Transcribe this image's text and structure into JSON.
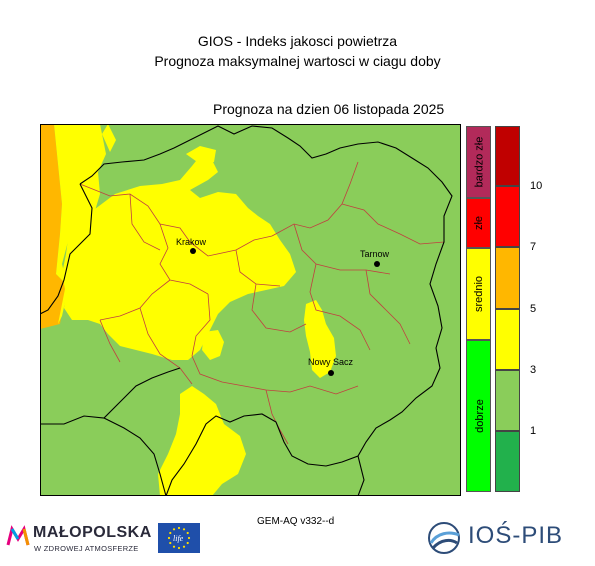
{
  "header": {
    "title_line1": "GIOS - Indeks jakosci powietrza",
    "title_line2": "Prognoza maksymalnej wartosci w ciagu doby",
    "forecast_date": "Prognoza na dzien  06 listopada 2025"
  },
  "map": {
    "cities": [
      {
        "name": "Krakow"
      },
      {
        "name": "Tarnow"
      },
      {
        "name": "Nowy Sacz"
      }
    ],
    "colors": {
      "background": "#8acd5a",
      "yellow": "#ffff00",
      "orange": "#ffb700",
      "border": "#c04040",
      "outline": "#000000"
    }
  },
  "legend": {
    "categories": [
      {
        "label": "bardzo złe",
        "color": "#b22a5a"
      },
      {
        "label": "złe",
        "color": "#ff0000"
      },
      {
        "label": "srednio",
        "color": "#ffff00"
      },
      {
        "label": "dobrze",
        "color": "#00ff00"
      }
    ],
    "scale_colors": [
      "#c00000",
      "#ff0000",
      "#ffb700",
      "#ffff00",
      "#8acd5a",
      "#22b14c"
    ],
    "ticks": [
      "10",
      "7",
      "5",
      "3",
      "1"
    ]
  },
  "footer": {
    "model": "GEM-AQ v332--d",
    "malopolska_title": "MAŁOPOLSKA",
    "malopolska_sub": "W ZDROWEJ ATMOSFERZE",
    "eu_life": "life",
    "ios_text": "IOŚ-PIB"
  }
}
